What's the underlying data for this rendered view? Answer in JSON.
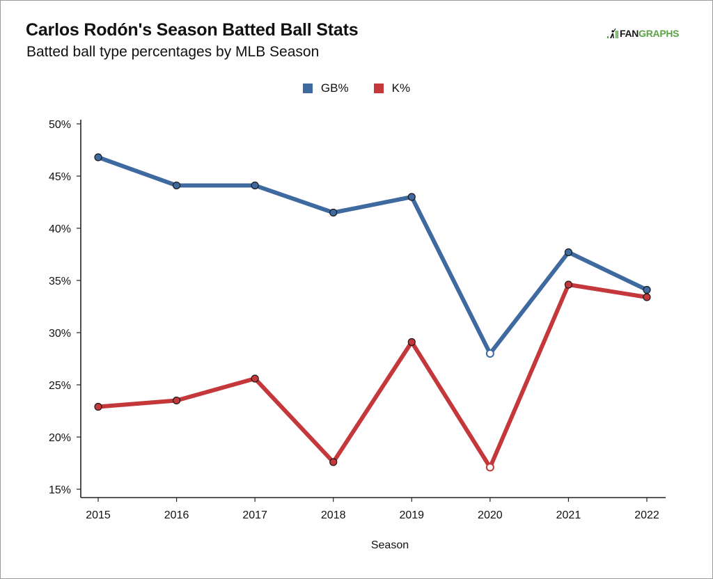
{
  "header": {
    "title": "Carlos Rodón's Season Batted Ball Stats",
    "subtitle": "Batted ball type percentages by MLB Season",
    "logo_text_dark": "FAN",
    "logo_text_green": "GRAPHS"
  },
  "colors": {
    "gb": "#3f6aa0",
    "k": "#c4373a",
    "logo_green": "#5aa447",
    "axis": "#222222"
  },
  "chart_data": {
    "type": "line",
    "title": "Carlos Rodón's Season Batted Ball Stats",
    "subtitle": "Batted ball type percentages by MLB Season",
    "xlabel": "Season",
    "ylabel": "",
    "x": [
      "2015",
      "2016",
      "2017",
      "2018",
      "2019",
      "2020",
      "2021",
      "2022"
    ],
    "ylim": [
      15,
      50
    ],
    "yticks": [
      15,
      20,
      25,
      30,
      35,
      40,
      45,
      50
    ],
    "ytick_labels": [
      "15%",
      "20%",
      "25%",
      "30%",
      "35%",
      "40%",
      "45%",
      "50%"
    ],
    "grid": false,
    "legend": {
      "placement": "top-center",
      "entries": [
        "GB%",
        "K%"
      ]
    },
    "hollow_points": [
      "2020"
    ],
    "series": [
      {
        "name": "GB%",
        "values": [
          46.8,
          44.1,
          44.1,
          41.5,
          43.0,
          28.0,
          37.7,
          34.1
        ]
      },
      {
        "name": "K%",
        "values": [
          22.9,
          23.5,
          25.6,
          17.6,
          29.1,
          17.1,
          34.6,
          33.4
        ]
      }
    ]
  }
}
